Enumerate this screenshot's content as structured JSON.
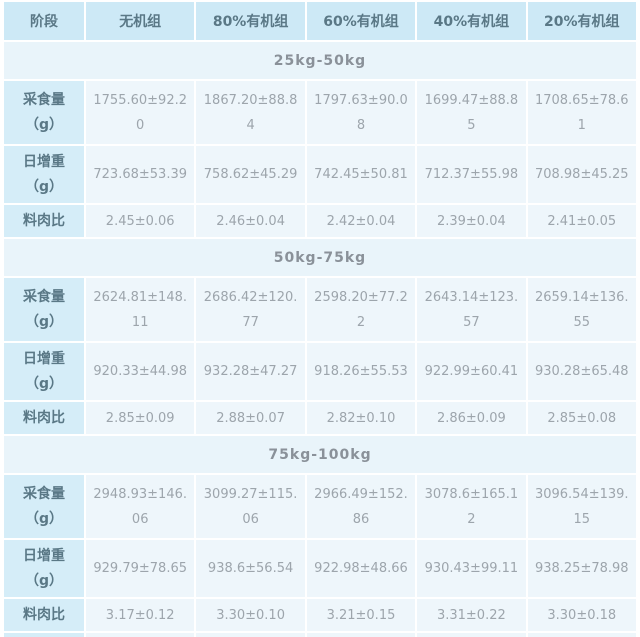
{
  "colors": {
    "header_bg": "#cde9f6",
    "label_bg": "#d5edf8",
    "cell_bg": "#eef6fb",
    "section_bg": "#e9f4fa",
    "header_text": "#5a7886",
    "section_text": "#8a9199",
    "value_text": "#9da5ac"
  },
  "table": {
    "columns": [
      "阶段",
      "无机组",
      "80%有机组",
      "60%有机组",
      "40%有机组",
      "20%有机组"
    ],
    "sections": [
      {
        "title": "25kg-50kg",
        "rows": [
          {
            "label": "采食量",
            "label_sub": "（g）",
            "values": [
              "1755.60±92.20",
              "1867.20±88.84",
              "1797.63±90.08",
              "1699.47±88.85",
              "1708.65±78.61"
            ]
          },
          {
            "label": "日增重",
            "label_sub": "（g）",
            "values": [
              "723.68±53.39",
              "758.62±45.29",
              "742.45±50.81",
              "712.37±55.98",
              "708.98±45.25"
            ]
          },
          {
            "label": "料肉比",
            "label_sub": "",
            "values": [
              "2.45±0.06",
              "2.46±0.04",
              "2.42±0.04",
              "2.39±0.04",
              "2.41±0.05"
            ]
          }
        ]
      },
      {
        "title": "50kg-75kg",
        "rows": [
          {
            "label": "采食量",
            "label_sub": "（g）",
            "values": [
              "2624.81±148.11",
              "2686.42±120.77",
              "2598.20±77.22",
              "2643.14±123.57",
              "2659.14±136.55"
            ]
          },
          {
            "label": "日增重",
            "label_sub": "（g）",
            "values": [
              "920.33±44.98",
              "932.28±47.27",
              "918.26±55.53",
              "922.99±60.41",
              "930.28±65.48"
            ]
          },
          {
            "label": "料肉比",
            "label_sub": "",
            "values": [
              "2.85±0.09",
              "2.88±0.07",
              "2.82±0.10",
              "2.86±0.09",
              "2.85±0.08"
            ]
          }
        ]
      },
      {
        "title": "75kg-100kg",
        "rows": [
          {
            "label": "采食量",
            "label_sub": "（g）",
            "values": [
              "2948.93±146.06",
              "3099.27±115.06",
              "2966.49±152.86",
              "3078.6±165.12",
              "3096.54±139.15"
            ]
          },
          {
            "label": "日增重",
            "label_sub": "（g）",
            "values": [
              "929.79±78.65",
              "938.6±56.54",
              "922.98±48.66",
              "930.43±99.11",
              "938.25±78.98"
            ]
          },
          {
            "label": "料肉比",
            "label_sub": "",
            "values": [
              "3.17±0.12",
              "3.30±0.10",
              "3.21±0.15",
              "3.31±0.22",
              "3.30±0.18"
            ]
          }
        ]
      }
    ]
  }
}
